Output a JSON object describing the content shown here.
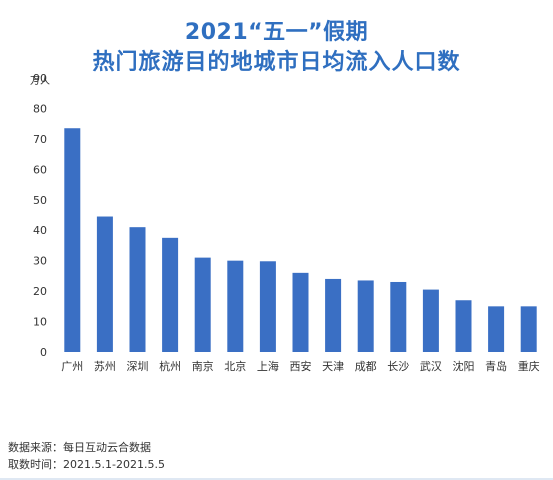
{
  "header": {
    "title_line1": "2021“五一”假期",
    "title_line2": "热门旅游目的地城市日均流入人口数"
  },
  "footer": {
    "source": "数据来源：每日互动云合数据",
    "period": "取数时间：2021.5.1-2021.5.5"
  },
  "colors": {
    "title": "#2f6fc0",
    "bar": "#3a6fc4",
    "text": "#333333"
  },
  "chart_data": {
    "type": "bar",
    "title": "2021“五一”假期 热门旅游目的地城市日均流入人口数",
    "unit_label": "万人",
    "xlabel": "",
    "ylabel": "万人",
    "ylim": [
      0,
      90
    ],
    "yticks": [
      0,
      10,
      20,
      30,
      40,
      50,
      60,
      70,
      80,
      90
    ],
    "grid": false,
    "categories": [
      "广州",
      "苏州",
      "深圳",
      "杭州",
      "南京",
      "北京",
      "上海",
      "西安",
      "天津",
      "成都",
      "长沙",
      "武汉",
      "沈阳",
      "青岛",
      "重庆"
    ],
    "values": [
      73.5,
      44.5,
      41,
      37.5,
      31,
      30,
      29.8,
      26,
      24,
      23.5,
      23,
      20.5,
      17,
      15,
      15
    ]
  }
}
